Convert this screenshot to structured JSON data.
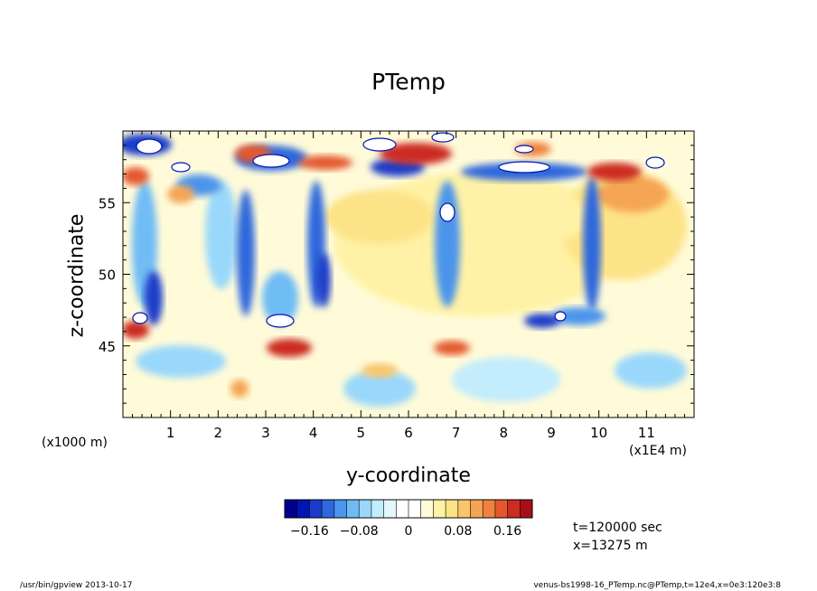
{
  "chart_data": {
    "type": "heatmap",
    "title": "PTemp",
    "xlabel": "y-coordinate",
    "ylabel": "z-coordinate",
    "x_unit_label": "(x1000 m)",
    "x_unit_label2": "(x1E4 m)",
    "x_ticks": [
      "1",
      "2",
      "3",
      "4",
      "5",
      "6",
      "7",
      "8",
      "9",
      "10",
      "11"
    ],
    "y_ticks": [
      "45",
      "50",
      "55"
    ],
    "xlim": [
      0,
      12
    ],
    "ylim": [
      40,
      60
    ],
    "colorbar": {
      "ticks": [
        "-0.16",
        "-0.08",
        "0",
        "0.08",
        "0.16"
      ],
      "range": [
        -0.2,
        0.2
      ]
    },
    "colors": [
      "#00008f",
      "#0015b3",
      "#1b3cc9",
      "#2f68dc",
      "#4c94ec",
      "#6fbcf5",
      "#9ad8fb",
      "#c3ecfd",
      "#e4f7ff",
      "#ffffff",
      "#ffffff",
      "#fffbd9",
      "#fff2a6",
      "#fde387",
      "#fac66b",
      "#f5a552",
      "#ef823f",
      "#e4582f",
      "#cc2c22",
      "#a70f16"
    ],
    "grid": false
  },
  "annotations": {
    "time": "t=120000 sec",
    "position": "x=13275 m"
  },
  "footer": {
    "left": "/usr/bin/gpview  2013-10-17",
    "right": "venus-bs1998-16_PTemp.nc@PTemp,t=12e4,x=0e3:120e3:8"
  }
}
